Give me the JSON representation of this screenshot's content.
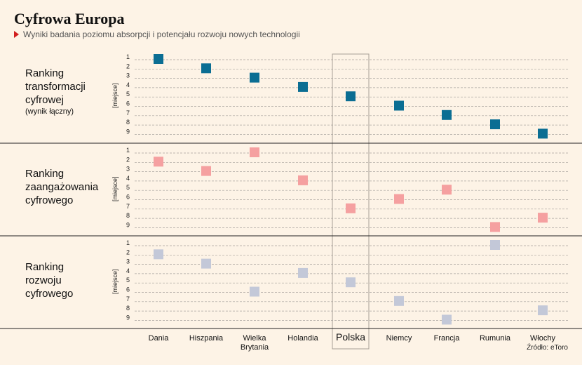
{
  "header": {
    "title": "Cyfrowa Europa",
    "subtitle": "Wyniki badania poziomu absorpcji i potencjału rozwoju nowych technologii"
  },
  "source": "Źródło: eToro",
  "chart_data": {
    "type": "scatter",
    "countries": [
      "Dania",
      "Hiszpania",
      "Wielka Brytania",
      "Holandia",
      "Polska",
      "Niemcy",
      "Francja",
      "Rumunia",
      "Włochy"
    ],
    "country_lines": [
      [
        "Dania"
      ],
      [
        "Hiszpania"
      ],
      [
        "Wielka",
        "Brytania"
      ],
      [
        "Holandia"
      ],
      [
        "Polska"
      ],
      [
        "Niemcy"
      ],
      [
        "Francja"
      ],
      [
        "Rumunia"
      ],
      [
        "Włochy"
      ]
    ],
    "highlight": "Polska",
    "rank_ticks": [
      1,
      2,
      3,
      4,
      5,
      6,
      7,
      8,
      9
    ],
    "y_axis_label": "[miejsce]",
    "y_range": [
      1,
      9
    ],
    "panels": [
      {
        "label_lines": [
          "Ranking",
          "transformacji",
          "cyfrowej"
        ],
        "note": "(wynik łączny)",
        "color": "#0b6e93",
        "values": [
          1,
          2,
          3,
          4,
          5,
          6,
          7,
          8,
          9
        ]
      },
      {
        "label_lines": [
          "Ranking",
          "zaangażowania",
          "cyfrowego"
        ],
        "note": "",
        "color": "#f5a0a0",
        "values": [
          2,
          3,
          1,
          4,
          7,
          6,
          5,
          9,
          8
        ]
      },
      {
        "label_lines": [
          "Ranking",
          "rozwoju",
          "cyfrowego"
        ],
        "note": "",
        "color": "#c3c8d8",
        "values": [
          2,
          3,
          6,
          4,
          5,
          7,
          9,
          1,
          8
        ]
      }
    ]
  }
}
